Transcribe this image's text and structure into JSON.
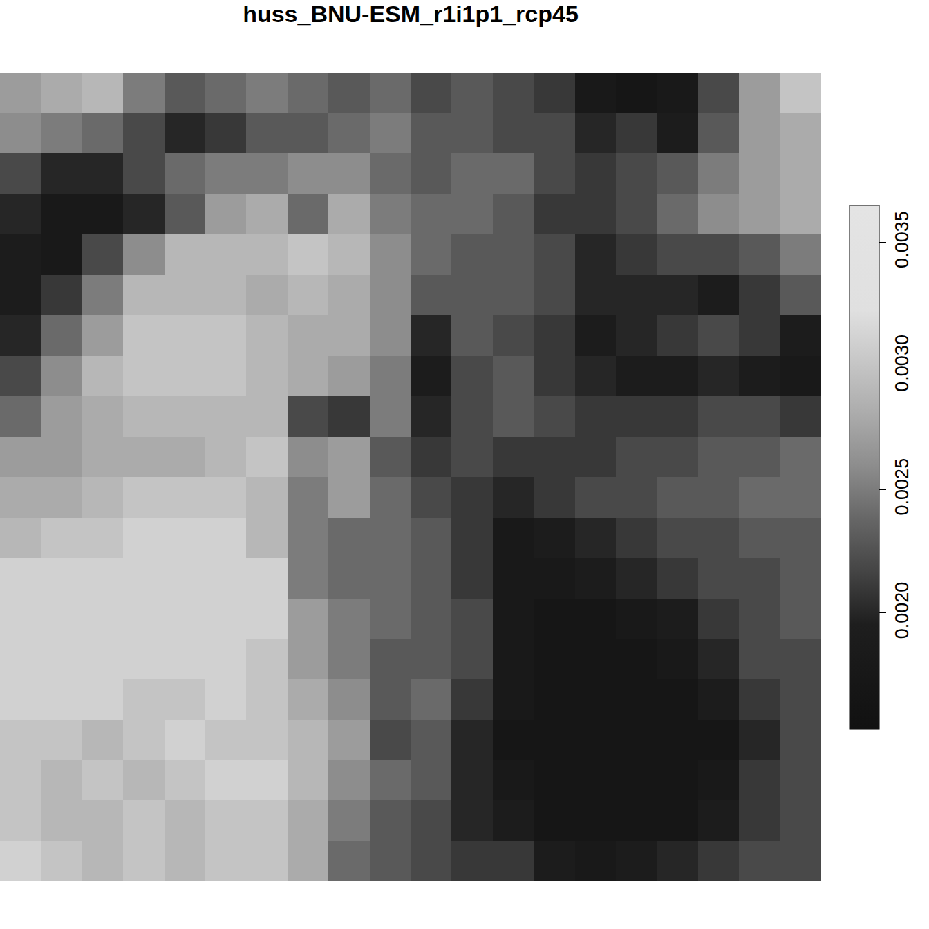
{
  "chart_data": {
    "type": "heatmap",
    "title": "huss_BNU-ESM_r1i1p1_rcp45",
    "tick_labels": false,
    "colorbar": {
      "range": [
        0.00153,
        0.00365
      ],
      "ticks": [
        {
          "value": 0.002,
          "label": "0.0020"
        },
        0.0025,
        {
          "value": 0.003,
          "label": "0.0030"
        },
        0.0035
      ]
    },
    "cells": [
      [
        0.0027,
        0.0028,
        0.0029,
        0.0025,
        0.0023,
        0.0024,
        0.0025,
        0.0024,
        0.0023,
        0.0024,
        0.0022,
        0.0023,
        0.0022,
        0.0021,
        0.0018,
        0.0017,
        0.0018,
        0.0022,
        0.0027,
        0.003
      ],
      [
        0.0026,
        0.0025,
        0.0024,
        0.0022,
        0.002,
        0.0021,
        0.0023,
        0.0023,
        0.0024,
        0.0025,
        0.0023,
        0.0023,
        0.0022,
        0.0022,
        0.002,
        0.0021,
        0.0019,
        0.0023,
        0.0027,
        0.0028
      ],
      [
        0.0022,
        0.002,
        0.002,
        0.0022,
        0.0024,
        0.0025,
        0.0025,
        0.0026,
        0.0026,
        0.0024,
        0.0023,
        0.0024,
        0.0024,
        0.0022,
        0.0021,
        0.0022,
        0.0023,
        0.0025,
        0.0027,
        0.0028
      ],
      [
        0.002,
        0.0018,
        0.0018,
        0.002,
        0.0023,
        0.0027,
        0.0028,
        0.0024,
        0.0028,
        0.0025,
        0.0024,
        0.0024,
        0.0023,
        0.0021,
        0.0021,
        0.0022,
        0.0024,
        0.0026,
        0.0027,
        0.0028
      ],
      [
        0.0019,
        0.0018,
        0.0022,
        0.0026,
        0.0029,
        0.0029,
        0.0029,
        0.003,
        0.0029,
        0.0026,
        0.0024,
        0.0023,
        0.0023,
        0.0022,
        0.002,
        0.0021,
        0.0022,
        0.0022,
        0.0023,
        0.0025
      ],
      [
        0.0019,
        0.0021,
        0.0025,
        0.0029,
        0.0029,
        0.0029,
        0.0028,
        0.0029,
        0.0028,
        0.0026,
        0.0023,
        0.0023,
        0.0023,
        0.0022,
        0.002,
        0.002,
        0.002,
        0.0019,
        0.0021,
        0.0023
      ],
      [
        0.002,
        0.0024,
        0.0027,
        0.003,
        0.003,
        0.003,
        0.0029,
        0.0028,
        0.0028,
        0.0026,
        0.002,
        0.0023,
        0.0022,
        0.0021,
        0.0019,
        0.002,
        0.0021,
        0.0022,
        0.0021,
        0.0019
      ],
      [
        0.0022,
        0.0026,
        0.0029,
        0.003,
        0.003,
        0.003,
        0.0029,
        0.0028,
        0.0027,
        0.0025,
        0.0019,
        0.0022,
        0.0023,
        0.0021,
        0.002,
        0.0019,
        0.0019,
        0.002,
        0.0019,
        0.0018
      ],
      [
        0.0024,
        0.0027,
        0.0028,
        0.0029,
        0.0029,
        0.0029,
        0.0029,
        0.0022,
        0.0021,
        0.0025,
        0.002,
        0.0022,
        0.0023,
        0.0022,
        0.0021,
        0.0021,
        0.0021,
        0.0022,
        0.0022,
        0.0021
      ],
      [
        0.0027,
        0.0027,
        0.0028,
        0.0028,
        0.0028,
        0.0029,
        0.003,
        0.0026,
        0.0027,
        0.0023,
        0.0021,
        0.0022,
        0.0021,
        0.0021,
        0.0021,
        0.0022,
        0.0022,
        0.0023,
        0.0023,
        0.0024
      ],
      [
        0.0028,
        0.0028,
        0.0029,
        0.003,
        0.003,
        0.003,
        0.0029,
        0.0025,
        0.0027,
        0.0024,
        0.0022,
        0.0021,
        0.002,
        0.0021,
        0.0022,
        0.0022,
        0.0023,
        0.0023,
        0.0024,
        0.0024
      ],
      [
        0.0029,
        0.003,
        0.003,
        0.0031,
        0.0031,
        0.0031,
        0.0029,
        0.0025,
        0.0024,
        0.0024,
        0.0023,
        0.0021,
        0.0018,
        0.0019,
        0.002,
        0.0021,
        0.0022,
        0.0022,
        0.0023,
        0.0023
      ],
      [
        0.0031,
        0.0031,
        0.0031,
        0.0031,
        0.0031,
        0.0031,
        0.0031,
        0.0025,
        0.0024,
        0.0024,
        0.0023,
        0.0021,
        0.0018,
        0.0018,
        0.0019,
        0.002,
        0.0021,
        0.0022,
        0.0022,
        0.0023
      ],
      [
        0.0031,
        0.0031,
        0.0031,
        0.0031,
        0.0031,
        0.0031,
        0.0031,
        0.0027,
        0.0025,
        0.0024,
        0.0023,
        0.0022,
        0.0018,
        0.0017,
        0.0017,
        0.0018,
        0.0019,
        0.0021,
        0.0022,
        0.0023
      ],
      [
        0.0031,
        0.0031,
        0.0031,
        0.0031,
        0.0031,
        0.0031,
        0.003,
        0.0027,
        0.0025,
        0.0023,
        0.0023,
        0.0022,
        0.0018,
        0.0017,
        0.0017,
        0.0017,
        0.0018,
        0.002,
        0.0022,
        0.0022
      ],
      [
        0.0031,
        0.0031,
        0.0031,
        0.003,
        0.003,
        0.0031,
        0.003,
        0.0028,
        0.0026,
        0.0023,
        0.0024,
        0.0021,
        0.0018,
        0.0017,
        0.0017,
        0.0017,
        0.0017,
        0.0019,
        0.0021,
        0.0022
      ],
      [
        0.003,
        0.003,
        0.0029,
        0.003,
        0.0031,
        0.003,
        0.003,
        0.0029,
        0.0027,
        0.0022,
        0.0023,
        0.002,
        0.0017,
        0.0017,
        0.0017,
        0.0017,
        0.0017,
        0.0017,
        0.002,
        0.0022
      ],
      [
        0.003,
        0.0029,
        0.003,
        0.0029,
        0.003,
        0.0031,
        0.0031,
        0.0029,
        0.0026,
        0.0024,
        0.0023,
        0.002,
        0.0018,
        0.0017,
        0.0017,
        0.0017,
        0.0017,
        0.0018,
        0.0021,
        0.0022
      ],
      [
        0.003,
        0.0029,
        0.0029,
        0.003,
        0.0029,
        0.003,
        0.003,
        0.0028,
        0.0025,
        0.0023,
        0.0022,
        0.002,
        0.0019,
        0.0017,
        0.0017,
        0.0017,
        0.0017,
        0.0019,
        0.0021,
        0.0022
      ],
      [
        0.0031,
        0.003,
        0.0029,
        0.003,
        0.0029,
        0.003,
        0.003,
        0.0028,
        0.0024,
        0.0023,
        0.0022,
        0.0021,
        0.0021,
        0.0019,
        0.0018,
        0.0019,
        0.002,
        0.0021,
        0.0022,
        0.0022
      ]
    ]
  }
}
